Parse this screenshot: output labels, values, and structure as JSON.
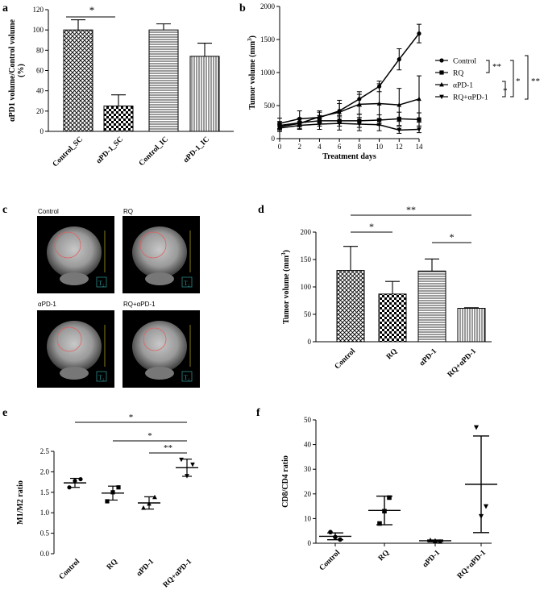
{
  "panel_letters": {
    "a": "a",
    "b": "b",
    "c": "c",
    "d": "d",
    "e": "e",
    "f": "f"
  },
  "mri": {
    "labels": [
      "Control",
      "RQ",
      "αPD-1",
      "RQ+αPD-1"
    ],
    "mode_icon_text": "T₂"
  },
  "chart_data": [
    {
      "id": "a",
      "type": "bar",
      "ylabel": "αPD1 volume/Control volume (%)",
      "categories": [
        "Control_SC",
        "αPD-1_SC",
        "Control_IC",
        "αPD-1_IC"
      ],
      "values": [
        100,
        25,
        100,
        74
      ],
      "errors": [
        10,
        11,
        6,
        13
      ],
      "patterns": [
        "crosshatch",
        "checker",
        "hlines",
        "vlines"
      ],
      "ylim": [
        0,
        120
      ],
      "yticks": [
        0,
        20,
        40,
        60,
        80,
        100,
        120
      ],
      "significance": [
        {
          "from": 0,
          "to": 1,
          "label": "*"
        }
      ]
    },
    {
      "id": "b",
      "type": "line",
      "xlabel": "Treatment days",
      "ylabel": "Tumor volume (mm3)",
      "x": [
        0,
        2,
        4,
        6,
        8,
        10,
        12,
        14
      ],
      "xlim": [
        0,
        14
      ],
      "ylim": [
        0,
        2000
      ],
      "yticks": [
        0,
        500,
        1000,
        1500,
        2000
      ],
      "series": [
        {
          "name": "Control",
          "marker": "circle",
          "values": [
            230,
            300,
            320,
            420,
            600,
            790,
            1200,
            1590
          ],
          "errors": [
            80,
            120,
            80,
            160,
            110,
            80,
            160,
            140
          ]
        },
        {
          "name": "RQ",
          "marker": "square",
          "values": [
            200,
            240,
            270,
            270,
            270,
            280,
            300,
            290
          ],
          "errors": [
            60,
            60,
            80,
            80,
            100,
            80,
            100,
            100
          ]
        },
        {
          "name": "αPD-1",
          "marker": "triangle-up",
          "values": [
            180,
            230,
            330,
            400,
            520,
            530,
            510,
            600
          ],
          "errors": [
            60,
            80,
            90,
            130,
            150,
            300,
            250,
            350
          ]
        },
        {
          "name": "RQ+αPD-1",
          "marker": "triangle-down",
          "values": [
            160,
            200,
            220,
            230,
            220,
            210,
            130,
            140
          ],
          "errors": [
            50,
            60,
            80,
            100,
            100,
            90,
            50,
            50
          ]
        }
      ],
      "significance_labels": [
        "**",
        "*",
        "*",
        "**"
      ]
    },
    {
      "id": "d",
      "type": "bar",
      "ylabel": "Tumor volume (mm3)",
      "categories": [
        "Control",
        "RQ",
        "αPD-1",
        "RQ+αPD-1"
      ],
      "values": [
        130,
        87,
        129,
        61
      ],
      "errors": [
        44,
        23,
        22,
        1
      ],
      "patterns": [
        "crosshatch",
        "checker",
        "hlines",
        "vlines"
      ],
      "ylim": [
        0,
        200
      ],
      "yticks": [
        0,
        50,
        100,
        150,
        200
      ],
      "significance": [
        {
          "from": 0,
          "to": 3,
          "label": "**"
        },
        {
          "from": 0,
          "to": 1,
          "label": "*"
        },
        {
          "from": 2,
          "to": 3,
          "label": "*"
        }
      ]
    },
    {
      "id": "e",
      "type": "scatter",
      "ylabel": "M1/M2 ratio",
      "categories": [
        "Control",
        "RQ",
        "αPD-1",
        "RQ+αPD-1"
      ],
      "markers": [
        "circle",
        "square",
        "triangle-up",
        "triangle-down"
      ],
      "points": [
        [
          1.62,
          1.82,
          1.78
        ],
        [
          1.28,
          1.62,
          1.5
        ],
        [
          1.12,
          1.38,
          1.22
        ],
        [
          2.3,
          2.18,
          1.9
        ]
      ],
      "means": [
        1.73,
        1.48,
        1.24,
        2.1
      ],
      "sd": [
        0.11,
        0.17,
        0.15,
        0.21
      ],
      "ylim": [
        0,
        2.5
      ],
      "yticks": [
        0,
        0.5,
        1.0,
        1.5,
        2.0,
        2.5
      ],
      "significance": [
        {
          "from": 0,
          "to": 3,
          "label": "*"
        },
        {
          "from": 1,
          "to": 3,
          "label": "*"
        },
        {
          "from": 2,
          "to": 3,
          "label": "**"
        }
      ]
    },
    {
      "id": "f",
      "type": "scatter",
      "ylabel": "CD8/CD4 ratio",
      "categories": [
        "Control",
        "RQ",
        "αPD-1",
        "RQ+αPD-1"
      ],
      "markers": [
        "circle",
        "square",
        "triangle-up",
        "triangle-down"
      ],
      "points": [
        [
          4.5,
          1.5,
          2.5
        ],
        [
          8.0,
          18.5,
          13.0
        ],
        [
          1.2,
          0.6,
          1.0
        ],
        [
          47.0,
          15.0,
          11.0
        ]
      ],
      "means": [
        2.8,
        13.3,
        1.0,
        23.9
      ],
      "sd": [
        1.4,
        5.8,
        0.3,
        19.6
      ],
      "ylim": [
        0,
        50
      ],
      "yticks": [
        0,
        10,
        20,
        30,
        40,
        50
      ]
    }
  ]
}
